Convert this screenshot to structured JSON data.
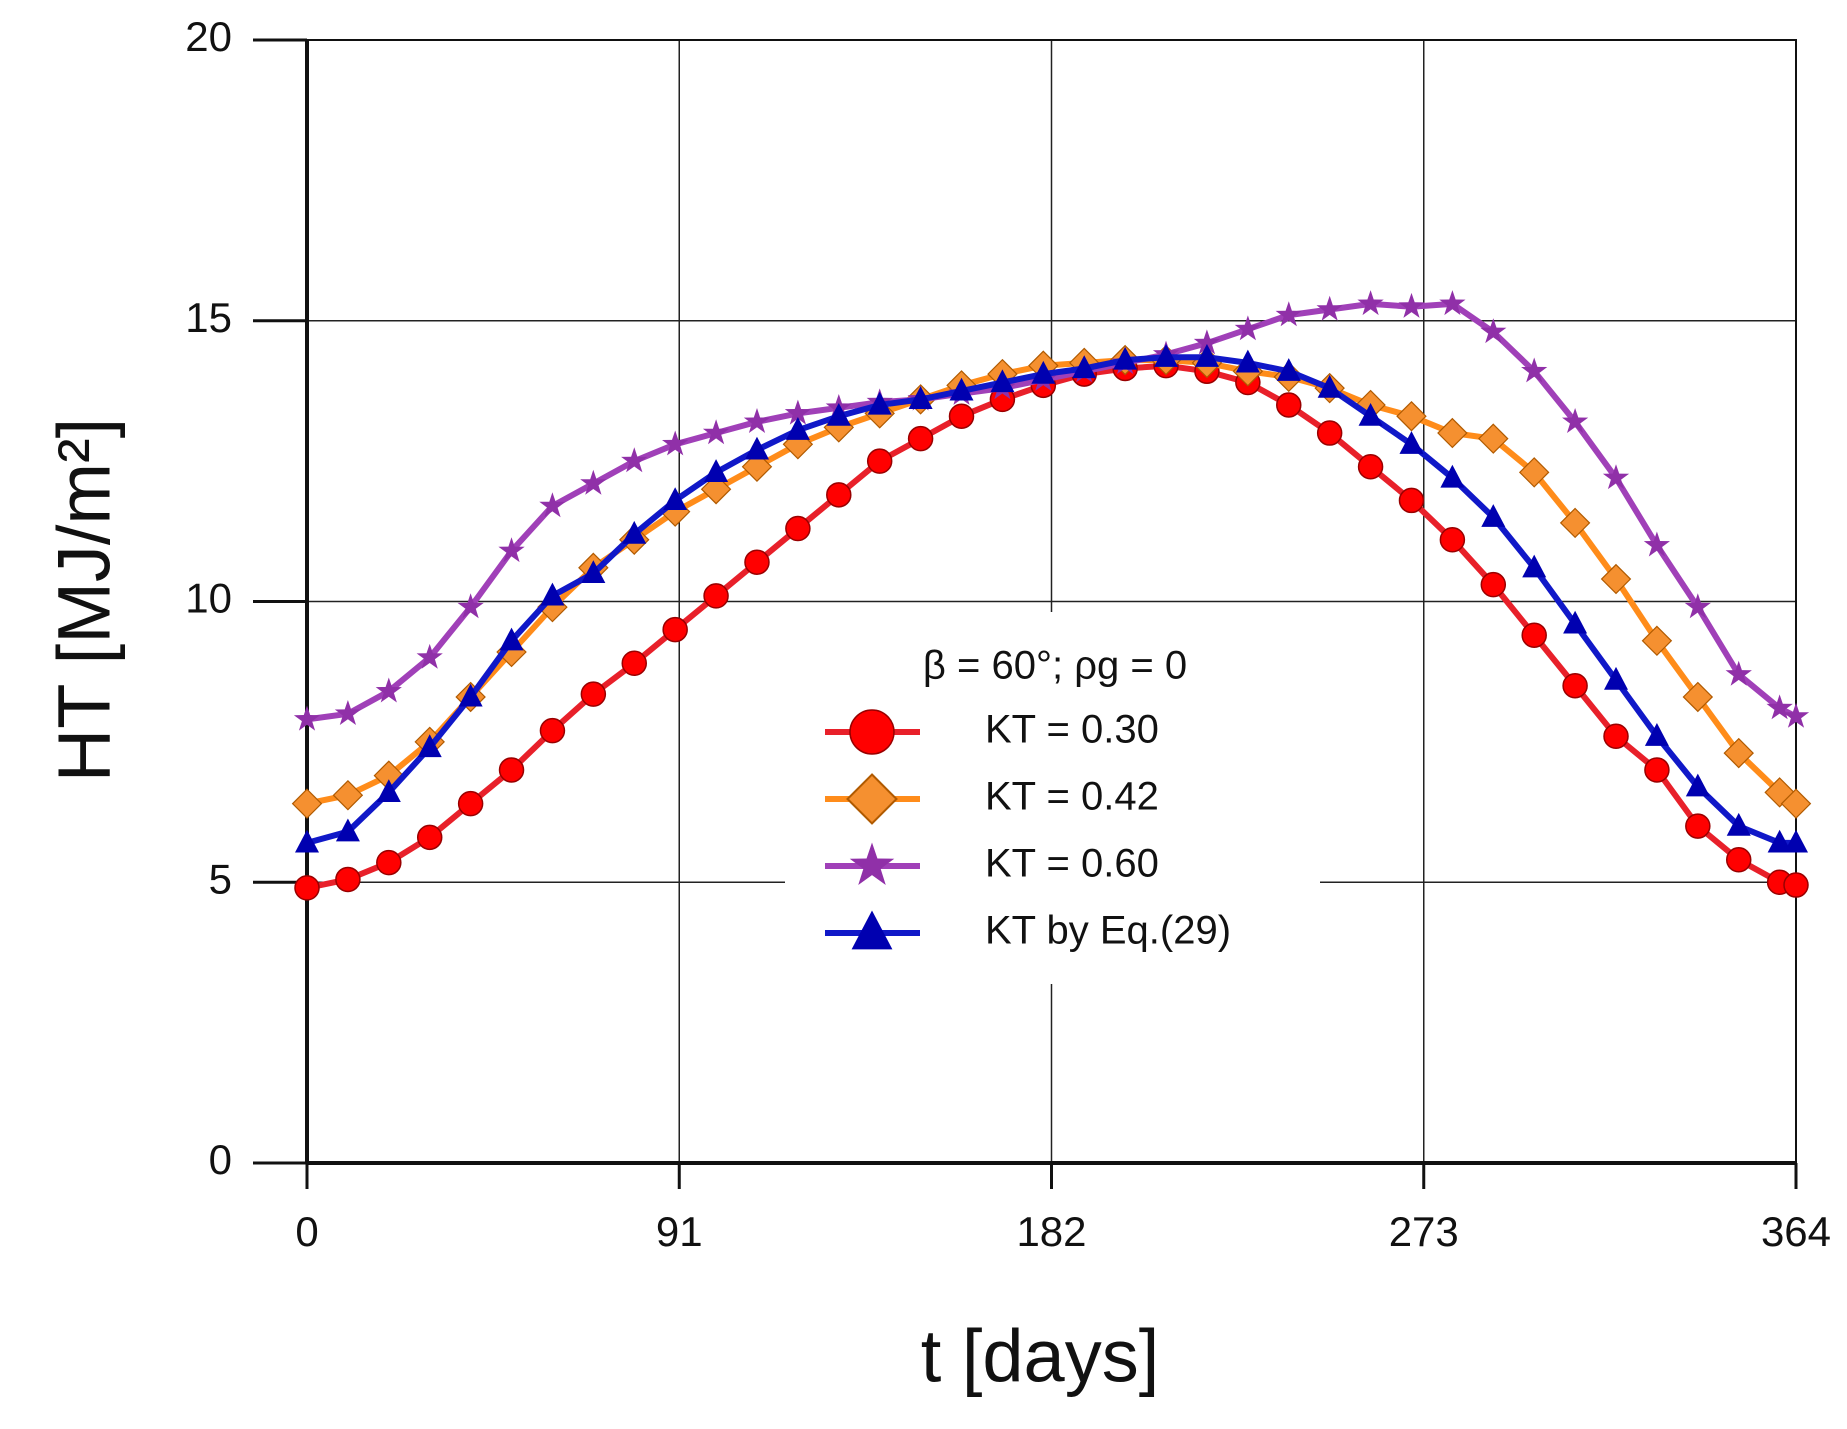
{
  "chart_data": {
    "type": "line",
    "x_label": "t [days]",
    "y_label": "HT [MJ/m²]",
    "legend_title": "β = 60°;  ρg = 0",
    "legend": "center",
    "grid": true,
    "xlim": [
      0,
      364
    ],
    "xticks": [
      0,
      91,
      182,
      273,
      364
    ],
    "ylim": [
      0,
      20
    ],
    "yticks": [
      0,
      5,
      10,
      15,
      20
    ],
    "x": [
      0,
      10,
      20,
      30,
      40,
      50,
      60,
      70,
      80,
      90,
      100,
      110,
      120,
      130,
      140,
      150,
      160,
      170,
      180,
      190,
      200,
      210,
      220,
      230,
      240,
      250,
      260,
      270,
      280,
      290,
      300,
      310,
      320,
      330,
      340,
      350,
      360,
      364
    ],
    "series": [
      {
        "name": "KT = 0.30",
        "color": "#e8202a",
        "marker_color": "#ff0000",
        "marker": "circle",
        "values": [
          4.9,
          5.05,
          5.35,
          5.8,
          6.4,
          7.0,
          7.7,
          8.35,
          8.9,
          9.5,
          10.1,
          10.7,
          11.3,
          11.9,
          12.5,
          12.9,
          13.3,
          13.6,
          13.85,
          14.05,
          14.15,
          14.2,
          14.1,
          13.9,
          13.5,
          13.0,
          12.4,
          11.8,
          11.1,
          10.3,
          9.4,
          8.5,
          7.6,
          7.0,
          6.0,
          5.4,
          5.0,
          4.95
        ]
      },
      {
        "name": "KT = 0.42",
        "color": "#ff8c1a",
        "marker_color": "#f59030",
        "marker": "diamond",
        "values": [
          6.4,
          6.55,
          6.9,
          7.5,
          8.3,
          9.1,
          9.9,
          10.6,
          11.1,
          11.6,
          12.0,
          12.4,
          12.8,
          13.1,
          13.35,
          13.6,
          13.85,
          14.05,
          14.2,
          14.25,
          14.3,
          14.3,
          14.25,
          14.1,
          14.0,
          13.8,
          13.5,
          13.3,
          13.0,
          12.9,
          12.3,
          11.4,
          10.4,
          9.3,
          8.3,
          7.3,
          6.6,
          6.4
        ]
      },
      {
        "name": "KT = 0.60",
        "color": "#a040b8",
        "marker_color": "#9030a8",
        "marker": "star",
        "values": [
          7.9,
          8.0,
          8.4,
          9.0,
          9.9,
          10.9,
          11.7,
          12.1,
          12.5,
          12.8,
          13.0,
          13.2,
          13.35,
          13.45,
          13.55,
          13.6,
          13.7,
          13.8,
          13.95,
          14.1,
          14.25,
          14.4,
          14.6,
          14.85,
          15.1,
          15.2,
          15.3,
          15.25,
          15.3,
          14.8,
          14.1,
          13.2,
          12.2,
          11.0,
          9.9,
          8.7,
          8.1,
          7.95
        ]
      },
      {
        "name": "KT by Eq.(29)",
        "color": "#1018c8",
        "marker_color": "#0000b0",
        "marker": "triangle",
        "values": [
          5.7,
          5.9,
          6.6,
          7.4,
          8.3,
          9.3,
          10.1,
          10.5,
          11.2,
          11.8,
          12.3,
          12.7,
          13.05,
          13.3,
          13.5,
          13.6,
          13.75,
          13.9,
          14.05,
          14.15,
          14.3,
          14.35,
          14.35,
          14.25,
          14.1,
          13.8,
          13.3,
          12.8,
          12.2,
          11.5,
          10.6,
          9.6,
          8.6,
          7.6,
          6.7,
          6.0,
          5.7,
          5.7
        ]
      }
    ]
  }
}
